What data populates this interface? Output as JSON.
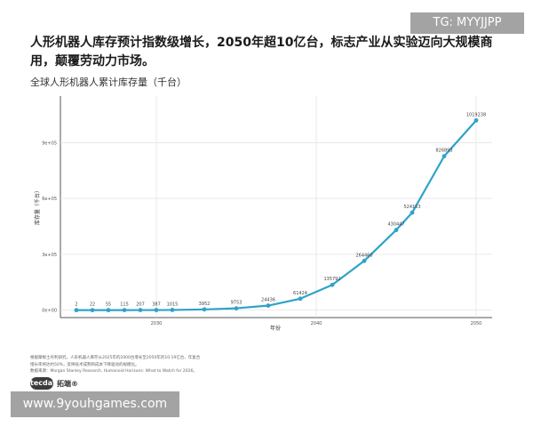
{
  "headline": "人形机器人库存预计指数级增长，2050年超10亿台，标志产业从实验迈向大规模商用，颠覆劳动力市场。",
  "chart_data": {
    "type": "line",
    "title": "全球人形机器人累计库存量（千台）",
    "xlabel": "年份",
    "ylabel": "库存量（千台）",
    "x": [
      2025,
      2026,
      2027,
      2028,
      2029,
      2030,
      2031,
      2033,
      2035,
      2037,
      2039,
      2041,
      2043,
      2045,
      2046,
      2048,
      2050
    ],
    "series": [
      {
        "values": [
          2,
          22,
          55,
          115,
          207,
          387,
          1015,
          3952,
          9753,
          24436,
          61424,
          135792,
          264460,
          430447,
          524153,
          826893,
          1019238
        ],
        "labels": [
          "2",
          "22",
          "55",
          "115",
          "207",
          "387",
          "1015",
          "3952",
          "9753",
          "24436",
          "61424",
          "135792",
          "264460",
          "430447",
          "524153",
          "826893",
          "1019238"
        ],
        "color": "#2ea3c8"
      }
    ],
    "xlim": [
      2024,
      2051
    ],
    "ylim": [
      -40000,
      1150000
    ],
    "xticks": [
      {
        "value": 2030,
        "label": "2030"
      },
      {
        "value": 2040,
        "label": "2040"
      },
      {
        "value": 2050,
        "label": "2050"
      }
    ],
    "yticks": [
      {
        "value": 0,
        "label": "0e+00"
      },
      {
        "value": 300000,
        "label": "3e+05"
      },
      {
        "value": 600000,
        "label": "6e+05"
      },
      {
        "value": 900000,
        "label": "9e+05"
      }
    ],
    "grid": true,
    "legend": "none"
  },
  "notes": [
    "根据摩根士丹利研究，人形机器人库存从2025年的2000台增长至2050年的10.19亿台，年复合",
    "增长率将达约50%，反映技术成熟和成本下降驱动的规模化。",
    "数据来源：Morgan Stanley Research, Humanoid Horizons: What to Watch for 2026。"
  ],
  "logo": {
    "badge": "tecdat",
    "text": "拓端®"
  },
  "watermarks": {
    "tg": "TG: MYYJJPP",
    "site": "www.9youhgames.com"
  },
  "colors": {
    "line": "#2ea3c8",
    "grid": "#e4e4e4",
    "watermark_bg": "#a3a3a3"
  }
}
